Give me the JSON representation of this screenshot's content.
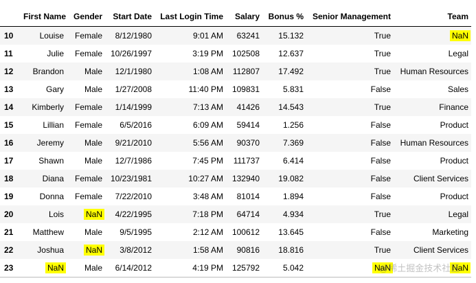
{
  "table": {
    "columns": [
      "",
      "First Name",
      "Gender",
      "Start Date",
      "Last Login Time",
      "Salary",
      "Bonus %",
      "Senior Management",
      "Team"
    ],
    "rows": [
      [
        "10",
        "Louise",
        "Female",
        "8/12/1980",
        "9:01 AM",
        "63241",
        "15.132",
        "True",
        "NaN"
      ],
      [
        "11",
        "Julie",
        "Female",
        "10/26/1997",
        "3:19 PM",
        "102508",
        "12.637",
        "True",
        "Legal"
      ],
      [
        "12",
        "Brandon",
        "Male",
        "12/1/1980",
        "1:08 AM",
        "112807",
        "17.492",
        "True",
        "Human Resources"
      ],
      [
        "13",
        "Gary",
        "Male",
        "1/27/2008",
        "11:40 PM",
        "109831",
        "5.831",
        "False",
        "Sales"
      ],
      [
        "14",
        "Kimberly",
        "Female",
        "1/14/1999",
        "7:13 AM",
        "41426",
        "14.543",
        "True",
        "Finance"
      ],
      [
        "15",
        "Lillian",
        "Female",
        "6/5/2016",
        "6:09 AM",
        "59414",
        "1.256",
        "False",
        "Product"
      ],
      [
        "16",
        "Jeremy",
        "Male",
        "9/21/2010",
        "5:56 AM",
        "90370",
        "7.369",
        "False",
        "Human Resources"
      ],
      [
        "17",
        "Shawn",
        "Male",
        "12/7/1986",
        "7:45 PM",
        "111737",
        "6.414",
        "False",
        "Product"
      ],
      [
        "18",
        "Diana",
        "Female",
        "10/23/1981",
        "10:27 AM",
        "132940",
        "19.082",
        "False",
        "Client Services"
      ],
      [
        "19",
        "Donna",
        "Female",
        "7/22/2010",
        "3:48 AM",
        "81014",
        "1.894",
        "False",
        "Product"
      ],
      [
        "20",
        "Lois",
        "NaN",
        "4/22/1995",
        "7:18 PM",
        "64714",
        "4.934",
        "True",
        "Legal"
      ],
      [
        "21",
        "Matthew",
        "Male",
        "9/5/1995",
        "2:12 AM",
        "100612",
        "13.645",
        "False",
        "Marketing"
      ],
      [
        "22",
        "Joshua",
        "NaN",
        "3/8/2012",
        "1:58 AM",
        "90816",
        "18.816",
        "True",
        "Client Services"
      ],
      [
        "23",
        "NaN",
        "Male",
        "6/14/2012",
        "4:19 PM",
        "125792",
        "5.042",
        "NaN",
        "NaN"
      ]
    ],
    "highlight_color": "#ffff00",
    "stripe_color": "#f5f5f5"
  },
  "watermark": "@稀土掘金技术社区"
}
